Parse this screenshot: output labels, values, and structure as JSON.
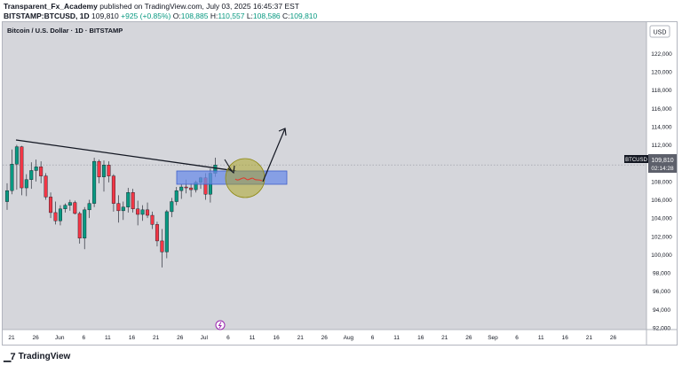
{
  "header": {
    "user": "Transparent_Fx_Academy",
    "published": "published on TradingView.com, July 03, 2025 16:45:37 EST",
    "symbol": "BITSTAMP:BTCUSD, 1D",
    "last": "109,810",
    "change": "+925 (+0.85%)",
    "o_label": "O:",
    "o": "108,885",
    "h_label": "H:",
    "h": "110,557",
    "l_label": "L:",
    "l": "108,586",
    "c_label": "C:",
    "c": "109,810"
  },
  "footer": {
    "brand": "TradingView"
  },
  "colors": {
    "up": "#089981",
    "down": "#f23645",
    "zone": "#6b8ce8",
    "circle": "#a9a21a"
  },
  "chart_data": {
    "type": "candlestick",
    "title": "Bitcoin / U.S. Dollar · 1D · BITSTAMP",
    "currency": "USD",
    "ylim": [
      92000,
      123000
    ],
    "y_ticks": [
      "122,000",
      "120,000",
      "118,000",
      "116,000",
      "114,000",
      "112,000",
      "110,000",
      "108,000",
      "106,000",
      "104,000",
      "102,000",
      "100,000",
      "98,000",
      "96,000",
      "94,000",
      "92,000"
    ],
    "x_ticks": [
      "21",
      "26",
      "Jun",
      "6",
      "11",
      "16",
      "21",
      "26",
      "Jul",
      "6",
      "11",
      "16",
      "21",
      "26",
      "Aug",
      "6",
      "11",
      "16",
      "21",
      "26",
      "Sep",
      "6",
      "11",
      "16",
      "21",
      "26"
    ],
    "price_label": {
      "symbol": "BTCUSD",
      "price": "109,810",
      "countdown": "02:14:28"
    },
    "last_price": 109810,
    "candles": [
      {
        "o": 105800,
        "h": 107800,
        "l": 104900,
        "c": 107000
      },
      {
        "o": 107000,
        "h": 111500,
        "l": 106600,
        "c": 109900
      },
      {
        "o": 109900,
        "h": 112000,
        "l": 107100,
        "c": 111800
      },
      {
        "o": 111800,
        "h": 111900,
        "l": 106500,
        "c": 107300
      },
      {
        "o": 107300,
        "h": 108800,
        "l": 106400,
        "c": 108200
      },
      {
        "o": 108200,
        "h": 110100,
        "l": 107200,
        "c": 109200
      },
      {
        "o": 109200,
        "h": 110400,
        "l": 108000,
        "c": 109600
      },
      {
        "o": 109600,
        "h": 110200,
        "l": 107800,
        "c": 108600
      },
      {
        "o": 108600,
        "h": 108900,
        "l": 106000,
        "c": 106300
      },
      {
        "o": 106300,
        "h": 106800,
        "l": 104000,
        "c": 104600
      },
      {
        "o": 104600,
        "h": 105800,
        "l": 103300,
        "c": 103700
      },
      {
        "o": 103700,
        "h": 105400,
        "l": 103200,
        "c": 105000
      },
      {
        "o": 105000,
        "h": 105600,
        "l": 104600,
        "c": 105400
      },
      {
        "o": 105400,
        "h": 106000,
        "l": 104800,
        "c": 105700
      },
      {
        "o": 105700,
        "h": 105900,
        "l": 104400,
        "c": 104500
      },
      {
        "o": 104500,
        "h": 104700,
        "l": 101200,
        "c": 101800
      },
      {
        "o": 101800,
        "h": 105200,
        "l": 100600,
        "c": 104900
      },
      {
        "o": 104900,
        "h": 106000,
        "l": 104000,
        "c": 105600
      },
      {
        "o": 105600,
        "h": 110600,
        "l": 105200,
        "c": 110200
      },
      {
        "o": 110200,
        "h": 110400,
        "l": 107800,
        "c": 108500
      },
      {
        "o": 108500,
        "h": 110300,
        "l": 106900,
        "c": 109800
      },
      {
        "o": 109800,
        "h": 110200,
        "l": 107900,
        "c": 108600
      },
      {
        "o": 108600,
        "h": 108800,
        "l": 104700,
        "c": 105600
      },
      {
        "o": 105600,
        "h": 106500,
        "l": 103500,
        "c": 104800
      },
      {
        "o": 104800,
        "h": 105800,
        "l": 103800,
        "c": 105200
      },
      {
        "o": 105200,
        "h": 107300,
        "l": 104600,
        "c": 106800
      },
      {
        "o": 106800,
        "h": 107200,
        "l": 104600,
        "c": 105000
      },
      {
        "o": 105000,
        "h": 105900,
        "l": 103200,
        "c": 104400
      },
      {
        "o": 104400,
        "h": 105400,
        "l": 103700,
        "c": 104900
      },
      {
        "o": 104900,
        "h": 105700,
        "l": 104000,
        "c": 104300
      },
      {
        "o": 104300,
        "h": 104700,
        "l": 102800,
        "c": 103300
      },
      {
        "o": 103300,
        "h": 103600,
        "l": 100900,
        "c": 101500
      },
      {
        "o": 101500,
        "h": 102800,
        "l": 98600,
        "c": 100300
      },
      {
        "o": 100300,
        "h": 104900,
        "l": 99600,
        "c": 104700
      },
      {
        "o": 104700,
        "h": 106200,
        "l": 104100,
        "c": 105800
      },
      {
        "o": 105800,
        "h": 107400,
        "l": 105400,
        "c": 107000
      },
      {
        "o": 107000,
        "h": 107700,
        "l": 106100,
        "c": 107400
      },
      {
        "o": 107400,
        "h": 108200,
        "l": 106700,
        "c": 107300
      },
      {
        "o": 107300,
        "h": 107800,
        "l": 106300,
        "c": 107100
      },
      {
        "o": 107100,
        "h": 108100,
        "l": 106800,
        "c": 107900
      },
      {
        "o": 107900,
        "h": 108500,
        "l": 107200,
        "c": 108400
      },
      {
        "o": 108400,
        "h": 108900,
        "l": 106000,
        "c": 106600
      },
      {
        "o": 106600,
        "h": 109400,
        "l": 105700,
        "c": 108900
      },
      {
        "o": 108900,
        "h": 110600,
        "l": 108500,
        "c": 109800
      }
    ]
  }
}
